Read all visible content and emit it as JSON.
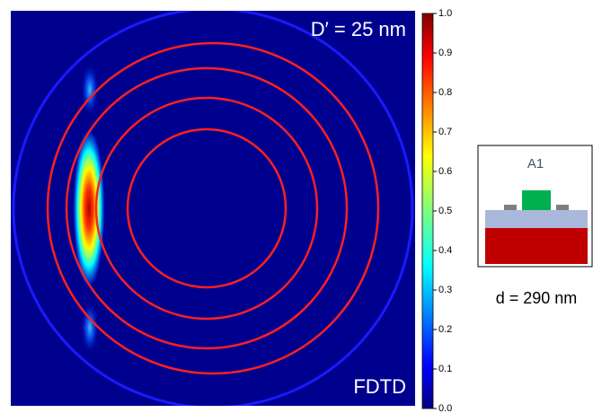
{
  "chart_data": {
    "type": "field-map",
    "annotations": [
      "D′ = 25 nm",
      "FDTD"
    ],
    "colorbar": {
      "clim": [
        0,
        1
      ],
      "ticks": [
        {
          "value": 0,
          "label": "0.0"
        },
        {
          "value": 0.1,
          "label": "0.1"
        },
        {
          "value": 0.2,
          "label": "0.2"
        },
        {
          "value": 0.3,
          "label": "0.3"
        },
        {
          "value": 0.4,
          "label": "0.4"
        },
        {
          "value": 0.5,
          "label": "0.5"
        },
        {
          "value": 0.6,
          "label": "0.6"
        },
        {
          "value": 0.7,
          "label": "0.7"
        },
        {
          "value": 0.8,
          "label": "0.8"
        },
        {
          "value": 0.9,
          "label": "0.9"
        },
        {
          "value": 1,
          "label": "1.0"
        }
      ]
    },
    "inset": {
      "label": "A1",
      "caption": "d = 290 nm"
    }
  }
}
